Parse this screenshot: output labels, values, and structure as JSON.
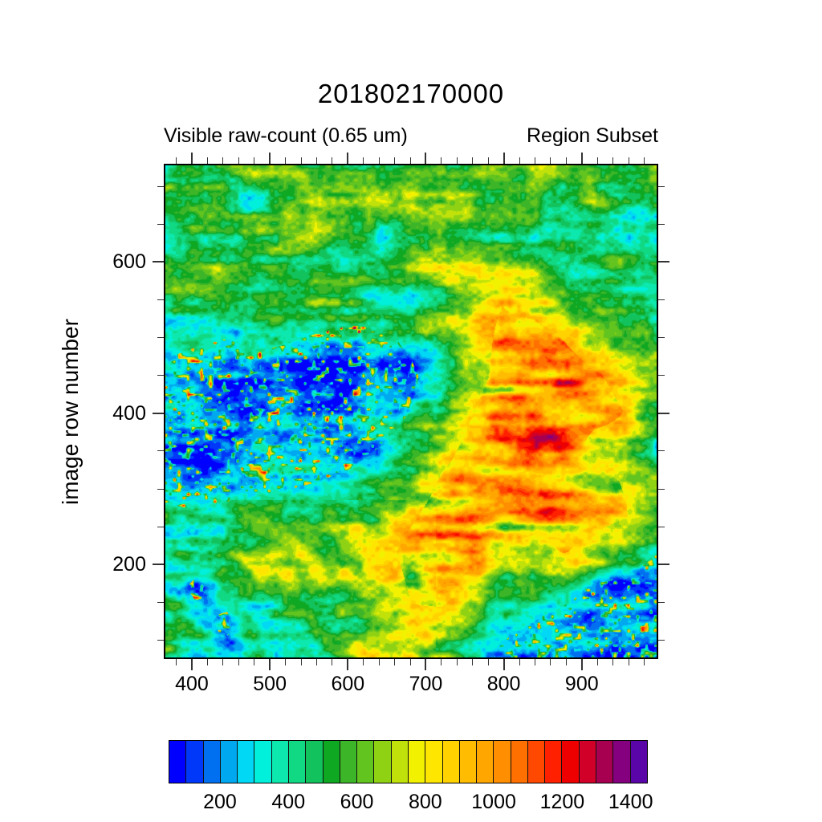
{
  "title": "201802170000",
  "subtitle_left": "Visible raw-count (0.65 um)",
  "subtitle_right": "Region Subset",
  "y_axis_label": "image row number",
  "chart_data": {
    "type": "heatmap",
    "title": "201802170000",
    "xlabel": "",
    "ylabel": "image row number",
    "x_range": [
      364,
      998
    ],
    "y_range": [
      75,
      730
    ],
    "x_ticks_major": [
      400,
      500,
      600,
      700,
      800,
      900
    ],
    "x_minor_step": 20,
    "y_ticks_major": [
      200,
      400,
      600
    ],
    "y_minor_step": 50,
    "grid": "off",
    "colorbar": {
      "min": 50,
      "max": 1450,
      "segment_size": 50,
      "tick_labels": [
        200,
        400,
        600,
        800,
        1000,
        1200,
        1400
      ],
      "colors": [
        "#0000FF",
        "#0038FA",
        "#0070F0",
        "#00A8F0",
        "#00D8F5",
        "#00F0DC",
        "#0CE8AE",
        "#10D883",
        "#12C25C",
        "#0FA823",
        "#3DB528",
        "#62C41E",
        "#8FD214",
        "#C0E20A",
        "#F2F200",
        "#FFE600",
        "#FFD200",
        "#FFBC00",
        "#FFA600",
        "#FF8E00",
        "#FF7000",
        "#FF4800",
        "#FF2000",
        "#EE0000",
        "#D00028",
        "#A80050",
        "#84007E",
        "#5A05A8"
      ]
    },
    "noise_seed": 7,
    "approx_field_grid": {
      "note": "coarse raw-count field sampled from the image, rows top-to-bottom across plot",
      "values": [
        [
          540,
          560,
          550,
          570,
          560,
          580,
          560,
          550,
          570,
          600,
          580,
          550,
          560,
          570,
          550,
          530,
          500
        ],
        [
          520,
          500,
          480,
          540,
          600,
          650,
          620,
          580,
          560,
          550,
          560,
          570,
          560,
          350,
          520,
          490,
          460
        ],
        [
          500,
          470,
          500,
          560,
          620,
          660,
          600,
          350,
          560,
          580,
          550,
          530,
          560,
          540,
          520,
          470,
          430
        ],
        [
          480,
          500,
          550,
          590,
          570,
          560,
          540,
          520,
          570,
          640,
          720,
          780,
          700,
          570,
          520,
          450,
          400
        ],
        [
          450,
          430,
          500,
          550,
          530,
          510,
          470,
          450,
          520,
          610,
          740,
          820,
          760,
          630,
          560,
          480,
          450
        ],
        [
          400,
          360,
          330,
          380,
          350,
          290,
          240,
          270,
          390,
          560,
          720,
          870,
          920,
          820,
          660,
          560,
          580
        ],
        [
          280,
          240,
          210,
          240,
          220,
          195,
          175,
          195,
          290,
          490,
          700,
          920,
          1010,
          960,
          860,
          710,
          560
        ],
        [
          215,
          195,
          185,
          195,
          205,
          188,
          178,
          195,
          340,
          540,
          810,
          1010,
          1060,
          1010,
          960,
          810,
          420
        ],
        [
          195,
          188,
          198,
          208,
          198,
          215,
          245,
          340,
          490,
          700,
          910,
          1060,
          1110,
          1060,
          680,
          700,
          330
        ],
        [
          245,
          225,
          245,
          275,
          295,
          340,
          390,
          490,
          640,
          850,
          1000,
          1060,
          1100,
          1000,
          900,
          800,
          580
        ],
        [
          390,
          370,
          410,
          440,
          490,
          540,
          590,
          640,
          790,
          940,
          1040,
          1000,
          950,
          990,
          940,
          840,
          600
        ],
        [
          490,
          440,
          490,
          540,
          590,
          640,
          690,
          740,
          890,
          940,
          1150,
          790,
          700,
          840,
          690,
          490,
          350
        ],
        [
          440,
          300,
          440,
          540,
          490,
          590,
          640,
          690,
          840,
          990,
          790,
          590,
          490,
          440,
          300,
          250,
          220
        ],
        [
          470,
          390,
          300,
          490,
          540,
          450,
          590,
          740,
          790,
          690,
          490,
          390,
          340,
          250,
          200,
          215,
          245
        ],
        [
          440,
          350,
          390,
          540,
          450,
          490,
          640,
          790,
          740,
          590,
          440,
          300,
          245,
          200,
          180,
          195,
          225
        ]
      ]
    }
  }
}
